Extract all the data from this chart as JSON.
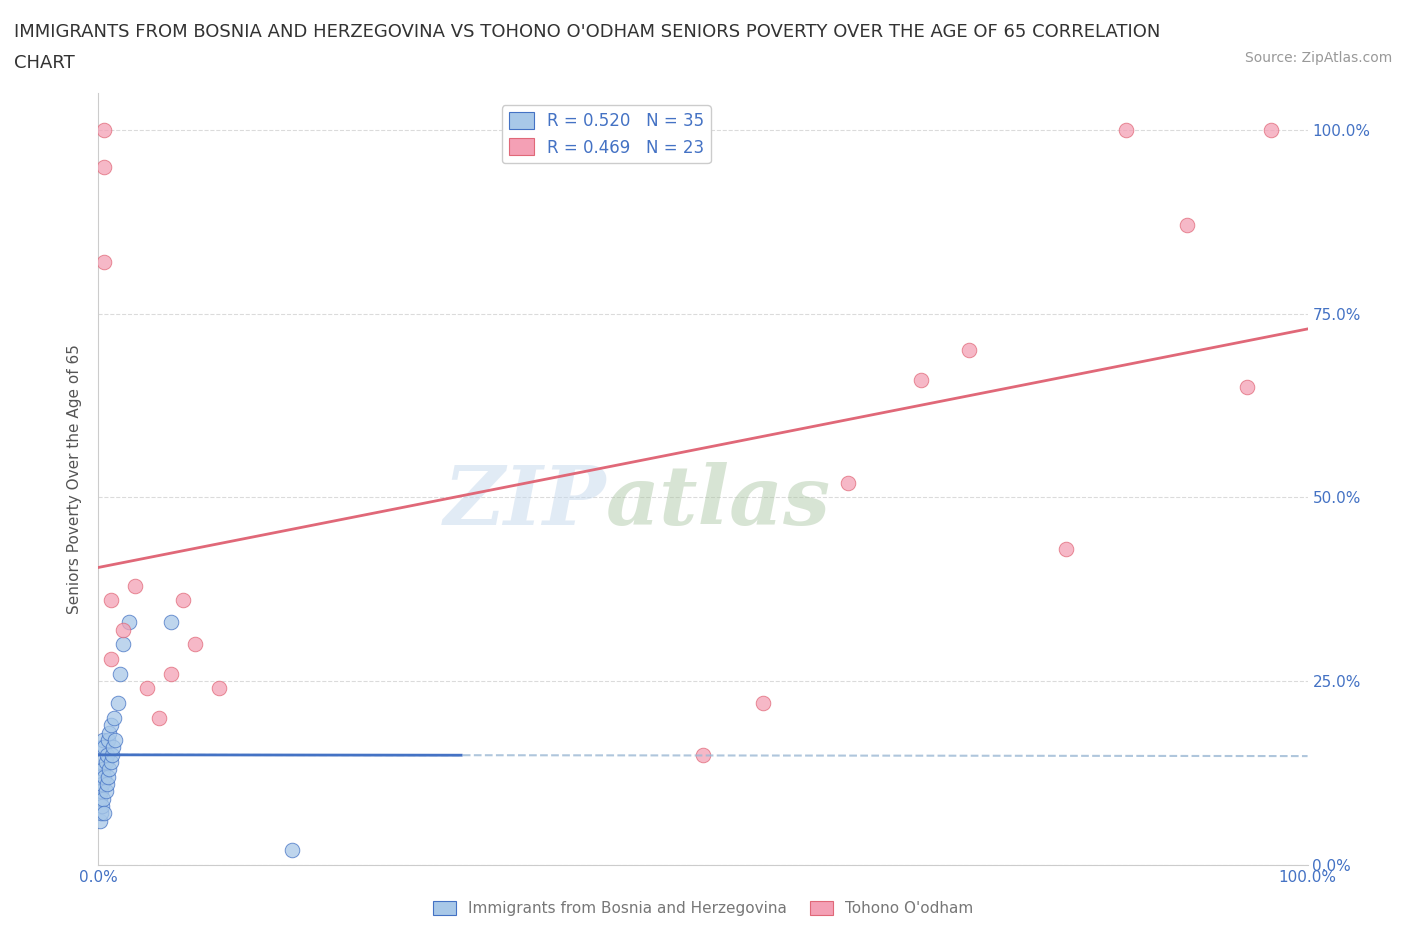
{
  "title_line1": "IMMIGRANTS FROM BOSNIA AND HERZEGOVINA VS TOHONO O'ODHAM SENIORS POVERTY OVER THE AGE OF 65 CORRELATION",
  "title_line2": "CHART",
  "source_text": "Source: ZipAtlas.com",
  "ylabel": "Seniors Poverty Over the Age of 65",
  "xlabel_blue": "Immigrants from Bosnia and Herzegovina",
  "xlabel_pink": "Tohono O'odham",
  "legend_blue_r": "R = 0.520",
  "legend_blue_n": "N = 35",
  "legend_pink_r": "R = 0.469",
  "legend_pink_n": "N = 23",
  "watermark_zip": "ZIP",
  "watermark_atlas": "atlas",
  "blue_color": "#A8C8E8",
  "pink_color": "#F4A0B5",
  "blue_line_color": "#4472C4",
  "pink_line_color": "#E06878",
  "dashed_line_color": "#9BB8D4",
  "blue_scatter_x": [
    0.001,
    0.001,
    0.001,
    0.002,
    0.002,
    0.002,
    0.003,
    0.003,
    0.003,
    0.004,
    0.004,
    0.004,
    0.005,
    0.005,
    0.005,
    0.006,
    0.006,
    0.007,
    0.007,
    0.008,
    0.008,
    0.009,
    0.009,
    0.01,
    0.01,
    0.011,
    0.012,
    0.013,
    0.014,
    0.016,
    0.018,
    0.02,
    0.025,
    0.06,
    0.16
  ],
  "blue_scatter_y": [
    0.06,
    0.09,
    0.12,
    0.07,
    0.1,
    0.14,
    0.08,
    0.11,
    0.16,
    0.09,
    0.13,
    0.17,
    0.07,
    0.12,
    0.16,
    0.1,
    0.14,
    0.11,
    0.15,
    0.12,
    0.17,
    0.13,
    0.18,
    0.14,
    0.19,
    0.15,
    0.16,
    0.2,
    0.17,
    0.22,
    0.26,
    0.3,
    0.33,
    0.33,
    0.02
  ],
  "pink_scatter_x": [
    0.01,
    0.01,
    0.02,
    0.03,
    0.04,
    0.05,
    0.06,
    0.07,
    0.08,
    0.1,
    0.5,
    0.55,
    0.62,
    0.68,
    0.72,
    0.8,
    0.85,
    0.9,
    0.95,
    0.97,
    0.005,
    0.005,
    0.005
  ],
  "pink_scatter_y": [
    0.28,
    0.36,
    0.32,
    0.38,
    0.24,
    0.2,
    0.26,
    0.36,
    0.3,
    0.24,
    0.15,
    0.22,
    0.52,
    0.66,
    0.7,
    0.43,
    1.0,
    0.87,
    0.65,
    1.0,
    0.95,
    0.82,
    1.0
  ],
  "xmin": 0.0,
  "xmax": 1.0,
  "ymin": 0.0,
  "ymax": 1.05,
  "yticks": [
    0.0,
    0.25,
    0.5,
    0.75,
    1.0
  ],
  "ytick_labels": [
    "0.0%",
    "25.0%",
    "50.0%",
    "75.0%",
    "100.0%"
  ],
  "xtick_positions": [
    0.0,
    0.1,
    0.2,
    0.3,
    0.4,
    0.5,
    0.6,
    0.7,
    0.8,
    0.9,
    1.0
  ],
  "xtick_labels": [
    "0.0%",
    "",
    "",
    "",
    "",
    "",
    "",
    "",
    "",
    "",
    "100.0%"
  ],
  "grid_color": "#CCCCCC",
  "background_color": "#FFFFFF",
  "title_fontsize": 13,
  "axis_label_color": "#4472C4",
  "source_color": "#999999",
  "ylabel_color": "#555555"
}
